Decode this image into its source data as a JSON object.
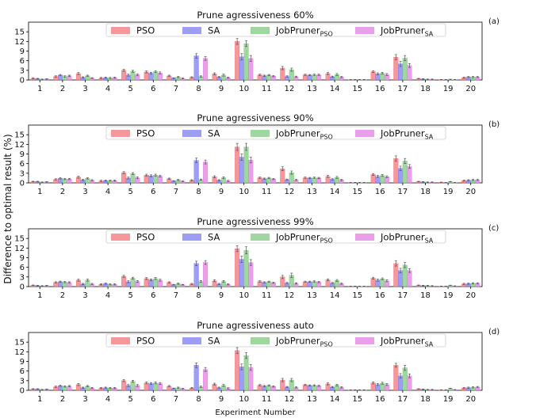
{
  "figure": {
    "ylabel": "Difference to optimal result (%)",
    "xlabel": "Experiment Number"
  },
  "legend": [
    {
      "base": "PSO",
      "sub": "",
      "color": "#f4858a"
    },
    {
      "base": "SA",
      "sub": "",
      "color": "#8c8cf5"
    },
    {
      "base": "JobPruner",
      "sub": "PSO",
      "color": "#8fd08f"
    },
    {
      "base": "JobPruner",
      "sub": "SA",
      "color": "#e58ee5"
    }
  ],
  "chart_data": [
    {
      "type": "bar",
      "title": "Prune agressiveness 60%",
      "panel_label": "(a)",
      "categories": [
        "1",
        "2",
        "3",
        "4",
        "5",
        "6",
        "7",
        "8",
        "9",
        "10",
        "11",
        "12",
        "13",
        "14",
        "15",
        "16",
        "17",
        "18",
        "19",
        "20"
      ],
      "ylim": [
        0,
        18
      ],
      "yticks": [
        0,
        3,
        6,
        9,
        12,
        15
      ],
      "series": [
        {
          "name": "PSO",
          "values": [
            0.5,
            1.1,
            2.0,
            0.6,
            3.0,
            2.5,
            1.3,
            0.8,
            1.9,
            12.0,
            1.6,
            3.7,
            1.6,
            2.0,
            0.1,
            2.6,
            7.1,
            0.4,
            0.1,
            0.7
          ],
          "errors": [
            0.2,
            0.2,
            0.3,
            0.2,
            0.3,
            0.3,
            0.2,
            0.2,
            0.3,
            0.9,
            0.2,
            0.5,
            0.2,
            0.3,
            0.05,
            0.3,
            0.8,
            0.1,
            0.05,
            0.2
          ]
        },
        {
          "name": "SA",
          "values": [
            0.4,
            1.5,
            0.8,
            0.7,
            1.5,
            2.1,
            0.6,
            7.5,
            0.9,
            7.2,
            1.3,
            1.1,
            1.5,
            1.0,
            0.1,
            1.9,
            5.0,
            0.3,
            0.1,
            0.9
          ],
          "errors": [
            0.1,
            0.2,
            0.2,
            0.2,
            0.3,
            0.3,
            0.1,
            0.7,
            0.2,
            1.0,
            0.2,
            0.2,
            0.2,
            0.2,
            0.05,
            0.3,
            0.8,
            0.1,
            0.05,
            0.2
          ]
        },
        {
          "name": "JobPruner PSO",
          "values": [
            0.2,
            1.1,
            1.3,
            0.6,
            2.7,
            2.6,
            0.9,
            1.1,
            1.5,
            11.3,
            1.5,
            3.2,
            1.6,
            1.7,
            0.1,
            2.1,
            6.8,
            0.2,
            0.2,
            0.9
          ],
          "errors": [
            0.1,
            0.2,
            0.2,
            0.2,
            0.3,
            0.3,
            0.2,
            0.2,
            0.3,
            0.9,
            0.2,
            0.5,
            0.2,
            0.3,
            0.05,
            0.3,
            0.8,
            0.1,
            0.05,
            0.2
          ]
        },
        {
          "name": "JobPruner SA",
          "values": [
            0.3,
            1.3,
            0.6,
            0.7,
            1.6,
            2.2,
            0.5,
            6.7,
            0.7,
            6.7,
            1.2,
            1.0,
            1.6,
            0.9,
            0.1,
            1.7,
            4.5,
            0.2,
            0.1,
            0.9
          ],
          "errors": [
            0.1,
            0.2,
            0.1,
            0.2,
            0.3,
            0.3,
            0.1,
            0.6,
            0.2,
            0.9,
            0.2,
            0.2,
            0.2,
            0.2,
            0.05,
            0.3,
            0.6,
            0.1,
            0.05,
            0.2
          ]
        }
      ]
    },
    {
      "type": "bar",
      "title": "Prune agressiveness 90%",
      "panel_label": "(b)",
      "categories": [
        "1",
        "2",
        "3",
        "4",
        "5",
        "6",
        "7",
        "8",
        "9",
        "10",
        "11",
        "12",
        "13",
        "14",
        "15",
        "16",
        "17",
        "18",
        "19",
        "20"
      ],
      "ylim": [
        0,
        18
      ],
      "yticks": [
        0,
        3,
        6,
        9,
        12,
        15
      ],
      "series": [
        {
          "name": "PSO",
          "values": [
            0.4,
            1.1,
            1.8,
            0.6,
            3.2,
            2.4,
            1.3,
            0.8,
            1.9,
            11.2,
            1.6,
            4.4,
            1.6,
            2.0,
            0.1,
            2.6,
            7.6,
            0.4,
            0.2,
            0.7
          ],
          "errors": [
            0.1,
            0.2,
            0.3,
            0.2,
            0.3,
            0.3,
            0.2,
            0.2,
            0.3,
            1.1,
            0.2,
            0.6,
            0.2,
            0.3,
            0.05,
            0.3,
            0.8,
            0.1,
            0.05,
            0.2
          ]
        },
        {
          "name": "SA",
          "values": [
            0.4,
            1.4,
            0.9,
            0.7,
            1.5,
            2.2,
            0.6,
            7.0,
            0.8,
            8.0,
            1.3,
            1.0,
            1.5,
            1.1,
            0.1,
            2.0,
            4.5,
            0.3,
            0.1,
            0.8
          ],
          "errors": [
            0.1,
            0.2,
            0.2,
            0.2,
            0.3,
            0.3,
            0.1,
            0.7,
            0.2,
            1.0,
            0.2,
            0.2,
            0.2,
            0.2,
            0.05,
            0.3,
            0.7,
            0.1,
            0.05,
            0.2
          ]
        },
        {
          "name": "JobPruner PSO",
          "values": [
            0.2,
            1.2,
            1.4,
            0.7,
            2.9,
            2.4,
            0.9,
            1.0,
            1.6,
            11.2,
            1.5,
            3.2,
            1.6,
            1.7,
            0.1,
            2.3,
            6.8,
            0.2,
            0.4,
            0.9
          ],
          "errors": [
            0.1,
            0.2,
            0.2,
            0.2,
            0.3,
            0.3,
            0.2,
            0.2,
            0.3,
            1.1,
            0.2,
            0.5,
            0.2,
            0.3,
            0.05,
            0.3,
            0.8,
            0.1,
            0.05,
            0.2
          ]
        },
        {
          "name": "JobPruner SA",
          "values": [
            0.3,
            1.2,
            0.8,
            0.7,
            1.6,
            2.1,
            0.5,
            6.5,
            0.6,
            7.1,
            1.2,
            0.9,
            1.5,
            0.9,
            0.1,
            1.9,
            5.1,
            0.2,
            0.1,
            0.9
          ],
          "errors": [
            0.1,
            0.2,
            0.2,
            0.2,
            0.3,
            0.3,
            0.1,
            0.6,
            0.2,
            0.9,
            0.2,
            0.2,
            0.2,
            0.2,
            0.05,
            0.3,
            0.6,
            0.1,
            0.05,
            0.2
          ]
        }
      ]
    },
    {
      "type": "bar",
      "title": "Prune agressiveness 99%",
      "panel_label": "(c)",
      "categories": [
        "1",
        "2",
        "3",
        "4",
        "5",
        "6",
        "7",
        "8",
        "9",
        "10",
        "11",
        "12",
        "13",
        "14",
        "15",
        "16",
        "17",
        "18",
        "19",
        "20"
      ],
      "ylim": [
        0,
        18
      ],
      "yticks": [
        0,
        3,
        6,
        9,
        12,
        15
      ],
      "series": [
        {
          "name": "PSO",
          "values": [
            0.4,
            1.3,
            2.0,
            0.7,
            3.2,
            2.5,
            1.3,
            0.8,
            1.8,
            11.8,
            1.6,
            3.0,
            1.5,
            2.1,
            0.1,
            2.6,
            7.2,
            0.4,
            0.1,
            0.8
          ],
          "errors": [
            0.1,
            0.2,
            0.3,
            0.2,
            0.3,
            0.3,
            0.2,
            0.2,
            0.3,
            0.9,
            0.2,
            0.5,
            0.2,
            0.3,
            0.05,
            0.3,
            0.8,
            0.1,
            0.05,
            0.2
          ]
        },
        {
          "name": "SA",
          "values": [
            0.3,
            1.5,
            0.8,
            0.9,
            1.5,
            2.1,
            0.6,
            7.2,
            0.8,
            8.5,
            1.3,
            1.1,
            1.5,
            1.1,
            0.1,
            2.0,
            5.0,
            0.3,
            0.1,
            0.9
          ],
          "errors": [
            0.1,
            0.2,
            0.2,
            0.2,
            0.3,
            0.3,
            0.1,
            0.7,
            0.2,
            1.0,
            0.2,
            0.2,
            0.2,
            0.2,
            0.05,
            0.3,
            0.7,
            0.1,
            0.05,
            0.2
          ]
        },
        {
          "name": "JobPruner PSO",
          "values": [
            0.2,
            1.4,
            2.0,
            0.7,
            2.6,
            2.5,
            0.9,
            1.6,
            1.6,
            11.3,
            1.5,
            3.5,
            1.6,
            1.9,
            0.1,
            2.4,
            6.7,
            0.3,
            0.4,
            1.0
          ],
          "errors": [
            0.1,
            0.2,
            0.3,
            0.2,
            0.3,
            0.3,
            0.2,
            0.3,
            0.3,
            1.1,
            0.2,
            0.7,
            0.2,
            0.3,
            0.05,
            0.3,
            0.8,
            0.1,
            0.05,
            0.2
          ]
        },
        {
          "name": "JobPruner SA",
          "values": [
            0.3,
            1.3,
            0.8,
            0.7,
            1.6,
            2.0,
            0.6,
            7.5,
            0.7,
            7.5,
            1.2,
            1.0,
            1.4,
            0.9,
            0.1,
            1.8,
            5.0,
            0.2,
            0.2,
            1.0
          ],
          "errors": [
            0.1,
            0.2,
            0.2,
            0.2,
            0.3,
            0.3,
            0.1,
            0.6,
            0.2,
            0.9,
            0.2,
            0.2,
            0.2,
            0.2,
            0.05,
            0.3,
            0.6,
            0.1,
            0.05,
            0.2
          ]
        }
      ]
    },
    {
      "type": "bar",
      "title": "Prune agressiveness auto",
      "panel_label": "(d)",
      "categories": [
        "1",
        "2",
        "3",
        "4",
        "5",
        "6",
        "7",
        "8",
        "9",
        "10",
        "11",
        "12",
        "13",
        "14",
        "15",
        "16",
        "17",
        "18",
        "19",
        "20"
      ],
      "ylim": [
        0,
        18
      ],
      "yticks": [
        0,
        3,
        6,
        9,
        12,
        15
      ],
      "series": [
        {
          "name": "PSO",
          "values": [
            0.4,
            1.1,
            1.8,
            0.7,
            3.0,
            2.3,
            1.3,
            0.7,
            1.9,
            12.4,
            1.6,
            3.2,
            1.7,
            2.0,
            0.1,
            2.3,
            7.8,
            0.4,
            0.1,
            0.7
          ],
          "errors": [
            0.1,
            0.2,
            0.3,
            0.2,
            0.3,
            0.3,
            0.2,
            0.2,
            0.3,
            0.9,
            0.2,
            0.5,
            0.2,
            0.3,
            0.05,
            0.3,
            0.6,
            0.1,
            0.05,
            0.2
          ]
        },
        {
          "name": "SA",
          "values": [
            0.4,
            1.4,
            0.8,
            0.8,
            1.5,
            2.1,
            0.6,
            7.8,
            0.8,
            7.3,
            1.3,
            1.0,
            1.5,
            1.0,
            0.1,
            1.8,
            4.5,
            0.3,
            0.1,
            0.8
          ],
          "errors": [
            0.1,
            0.2,
            0.2,
            0.2,
            0.3,
            0.3,
            0.1,
            0.7,
            0.2,
            0.9,
            0.2,
            0.2,
            0.2,
            0.2,
            0.05,
            0.3,
            0.7,
            0.1,
            0.05,
            0.2
          ]
        },
        {
          "name": "JobPruner PSO",
          "values": [
            0.2,
            1.2,
            1.3,
            0.7,
            2.8,
            2.3,
            0.8,
            1.1,
            1.5,
            10.8,
            1.5,
            3.2,
            1.5,
            1.6,
            0.1,
            2.2,
            7.0,
            0.2,
            0.6,
            0.9
          ],
          "errors": [
            0.1,
            0.2,
            0.2,
            0.2,
            0.3,
            0.3,
            0.2,
            0.2,
            0.3,
            0.9,
            0.2,
            0.5,
            0.2,
            0.3,
            0.05,
            0.3,
            0.8,
            0.1,
            0.05,
            0.2
          ]
        },
        {
          "name": "JobPruner SA",
          "values": [
            0.3,
            1.3,
            0.7,
            0.7,
            1.5,
            2.1,
            0.5,
            6.5,
            0.6,
            7.1,
            1.2,
            0.9,
            1.4,
            0.9,
            0.1,
            1.8,
            4.5,
            0.2,
            0.2,
            1.0
          ],
          "errors": [
            0.1,
            0.2,
            0.2,
            0.2,
            0.3,
            0.3,
            0.1,
            0.6,
            0.2,
            0.9,
            0.2,
            0.2,
            0.2,
            0.2,
            0.05,
            0.3,
            0.6,
            0.1,
            0.05,
            0.2
          ]
        }
      ]
    }
  ]
}
